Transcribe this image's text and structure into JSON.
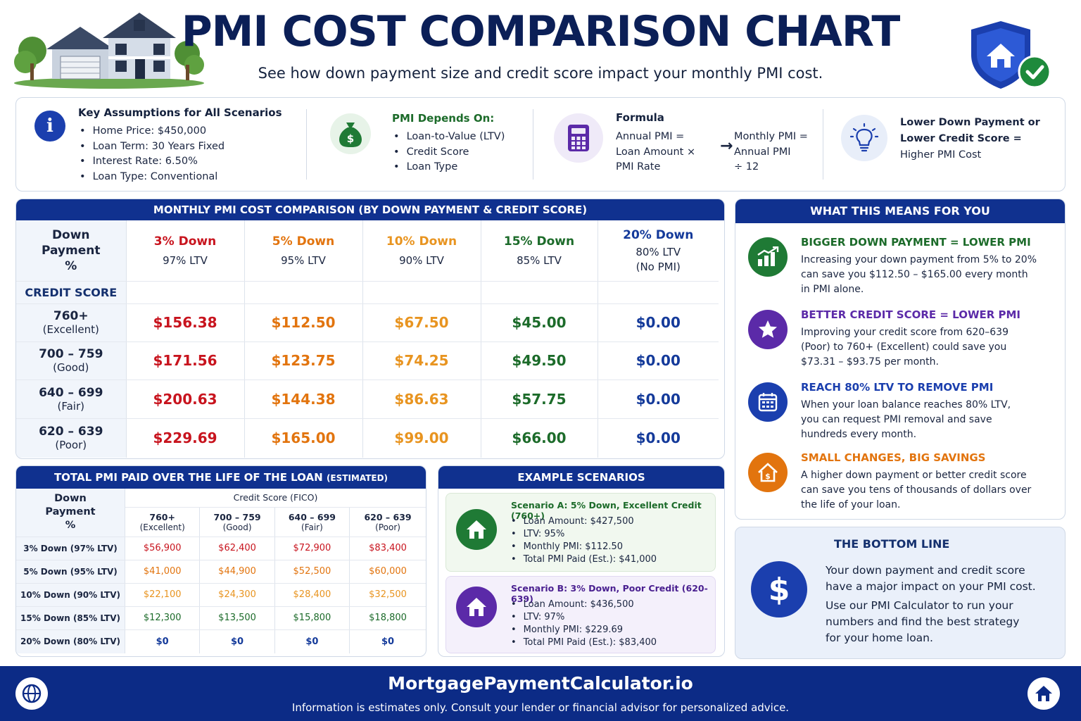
{
  "header": {
    "title": "PMI COST COMPARISON CHART",
    "subtitle": "See how down payment size and credit score impact your monthly PMI cost."
  },
  "info": {
    "assumptions_title": "Key Assumptions for All Scenarios",
    "assumptions": [
      "Home Price: $450,000",
      "Loan Term: 30 Years Fixed",
      "Interest Rate: 6.50%",
      "Loan Type: Conventional"
    ],
    "depends_title": "PMI Depends On:",
    "depends": [
      "Loan-to-Value (LTV)",
      "Credit Score",
      "Loan Type"
    ],
    "formula_title": "Formula",
    "formula_left": [
      "Annual PMI =",
      "Loan Amount ×",
      "PMI Rate"
    ],
    "formula_right": [
      "Monthly PMI =",
      "Annual PMI",
      "÷ 12"
    ],
    "tip": [
      "Lower Down Payment or",
      "Lower Credit Score =",
      "Higher PMI Cost"
    ]
  },
  "monthly": {
    "title": "MONTHLY PMI COST COMPARISON (BY DOWN PAYMENT & CREDIT SCORE)",
    "corner": [
      "Down",
      "Payment",
      "%"
    ],
    "credit_label": "CREDIT SCORE",
    "columns": [
      {
        "name": "3% Down",
        "ltv": "97% LTV",
        "note": ""
      },
      {
        "name": "5% Down",
        "ltv": "95% LTV",
        "note": ""
      },
      {
        "name": "10% Down",
        "ltv": "90% LTV",
        "note": ""
      },
      {
        "name": "15% Down",
        "ltv": "85% LTV",
        "note": ""
      },
      {
        "name": "20% Down",
        "ltv": "80% LTV",
        "note": "(No PMI)"
      }
    ],
    "rows": [
      {
        "score": "760+",
        "tier": "(Excellent)",
        "values": [
          "$156.38",
          "$112.50",
          "$67.50",
          "$45.00",
          "$0.00"
        ]
      },
      {
        "score": "700 – 759",
        "tier": "(Good)",
        "values": [
          "$171.56",
          "$123.75",
          "$74.25",
          "$49.50",
          "$0.00"
        ]
      },
      {
        "score": "640 – 699",
        "tier": "(Fair)",
        "values": [
          "$200.63",
          "$144.38",
          "$86.63",
          "$57.75",
          "$0.00"
        ]
      },
      {
        "score": "620 – 639",
        "tier": "(Poor)",
        "values": [
          "$229.69",
          "$165.00",
          "$99.00",
          "$66.00",
          "$0.00"
        ]
      }
    ]
  },
  "total": {
    "title": "TOTAL PMI PAID OVER THE LIFE OF THE LOAN",
    "title_small": "(ESTIMATED)",
    "corner": [
      "Down",
      "Payment",
      "%"
    ],
    "credit_header": "Credit Score (FICO)",
    "columns": [
      {
        "score": "760+",
        "tier": "(Excellent)"
      },
      {
        "score": "700 – 759",
        "tier": "(Good)"
      },
      {
        "score": "640 – 699",
        "tier": "(Fair)"
      },
      {
        "score": "620 – 639",
        "tier": "(Poor)"
      }
    ],
    "rows": [
      {
        "label": "3% Down (97% LTV)",
        "values": [
          "$56,900",
          "$62,400",
          "$72,900",
          "$83,400"
        ]
      },
      {
        "label": "5% Down (95% LTV)",
        "values": [
          "$41,000",
          "$44,900",
          "$52,500",
          "$60,000"
        ]
      },
      {
        "label": "10% Down (90% LTV)",
        "values": [
          "$22,100",
          "$24,300",
          "$28,400",
          "$32,500"
        ]
      },
      {
        "label": "15% Down (85% LTV)",
        "values": [
          "$12,300",
          "$13,500",
          "$15,800",
          "$18,800"
        ]
      },
      {
        "label": "20% Down (80% LTV)",
        "values": [
          "$0",
          "$0",
          "$0",
          "$0"
        ]
      }
    ]
  },
  "examples": {
    "title": "EXAMPLE SCENARIOS",
    "a": {
      "title": "Scenario A: 5% Down, Excellent Credit (760+)",
      "items": [
        "Loan Amount: $427,500",
        "LTV: 95%",
        "Monthly PMI: $112.50",
        "Total PMI Paid (Est.): $41,000"
      ]
    },
    "b": {
      "title": "Scenario B: 3% Down, Poor Credit (620-639)",
      "items": [
        "Loan Amount: $436,500",
        "LTV: 97%",
        "Monthly PMI: $229.69",
        "Total PMI Paid (Est.): $83,400"
      ]
    }
  },
  "means": {
    "title": "WHAT THIS MEANS FOR YOU",
    "items": [
      {
        "title": "BIGGER DOWN PAYMENT = LOWER PMI",
        "text": [
          "Increasing your down payment from 5% to 20%",
          "can save you $112.50 – $165.00 every month",
          "in PMI alone."
        ]
      },
      {
        "title": "BETTER CREDIT SCORE = LOWER PMI",
        "text": [
          "Improving your credit score from 620–639",
          "(Poor) to 760+ (Excellent) could save you",
          "$73.31 – $93.75 per month."
        ]
      },
      {
        "title": "REACH 80% LTV TO REMOVE PMI",
        "text": [
          "When your loan balance reaches 80% LTV,",
          "you can request PMI removal and save",
          "hundreds every month."
        ]
      },
      {
        "title": "SMALL CHANGES, BIG SAVINGS",
        "text": [
          "A higher down payment or better credit score",
          "can save you tens of thousands of dollars over",
          "the life of your loan."
        ]
      }
    ]
  },
  "bottom": {
    "title": "THE BOTTOM LINE",
    "p1": [
      "Your down payment and credit score",
      "have a major impact on your PMI cost."
    ],
    "p2": [
      "Use our PMI Calculator to run your",
      "numbers and find the best strategy",
      "for your home loan."
    ]
  },
  "footer": {
    "site": "MortgagePaymentCalculator.io",
    "disclaimer": "Information is estimates only. Consult your lender or financial advisor for personalized advice."
  },
  "colors": {
    "navy": "#10318f",
    "red": "#c8141e",
    "orange": "#e2740e",
    "gold": "#e89420",
    "green": "#1c6b2a",
    "blue": "#143a9a",
    "purple": "#5b2aa8"
  }
}
